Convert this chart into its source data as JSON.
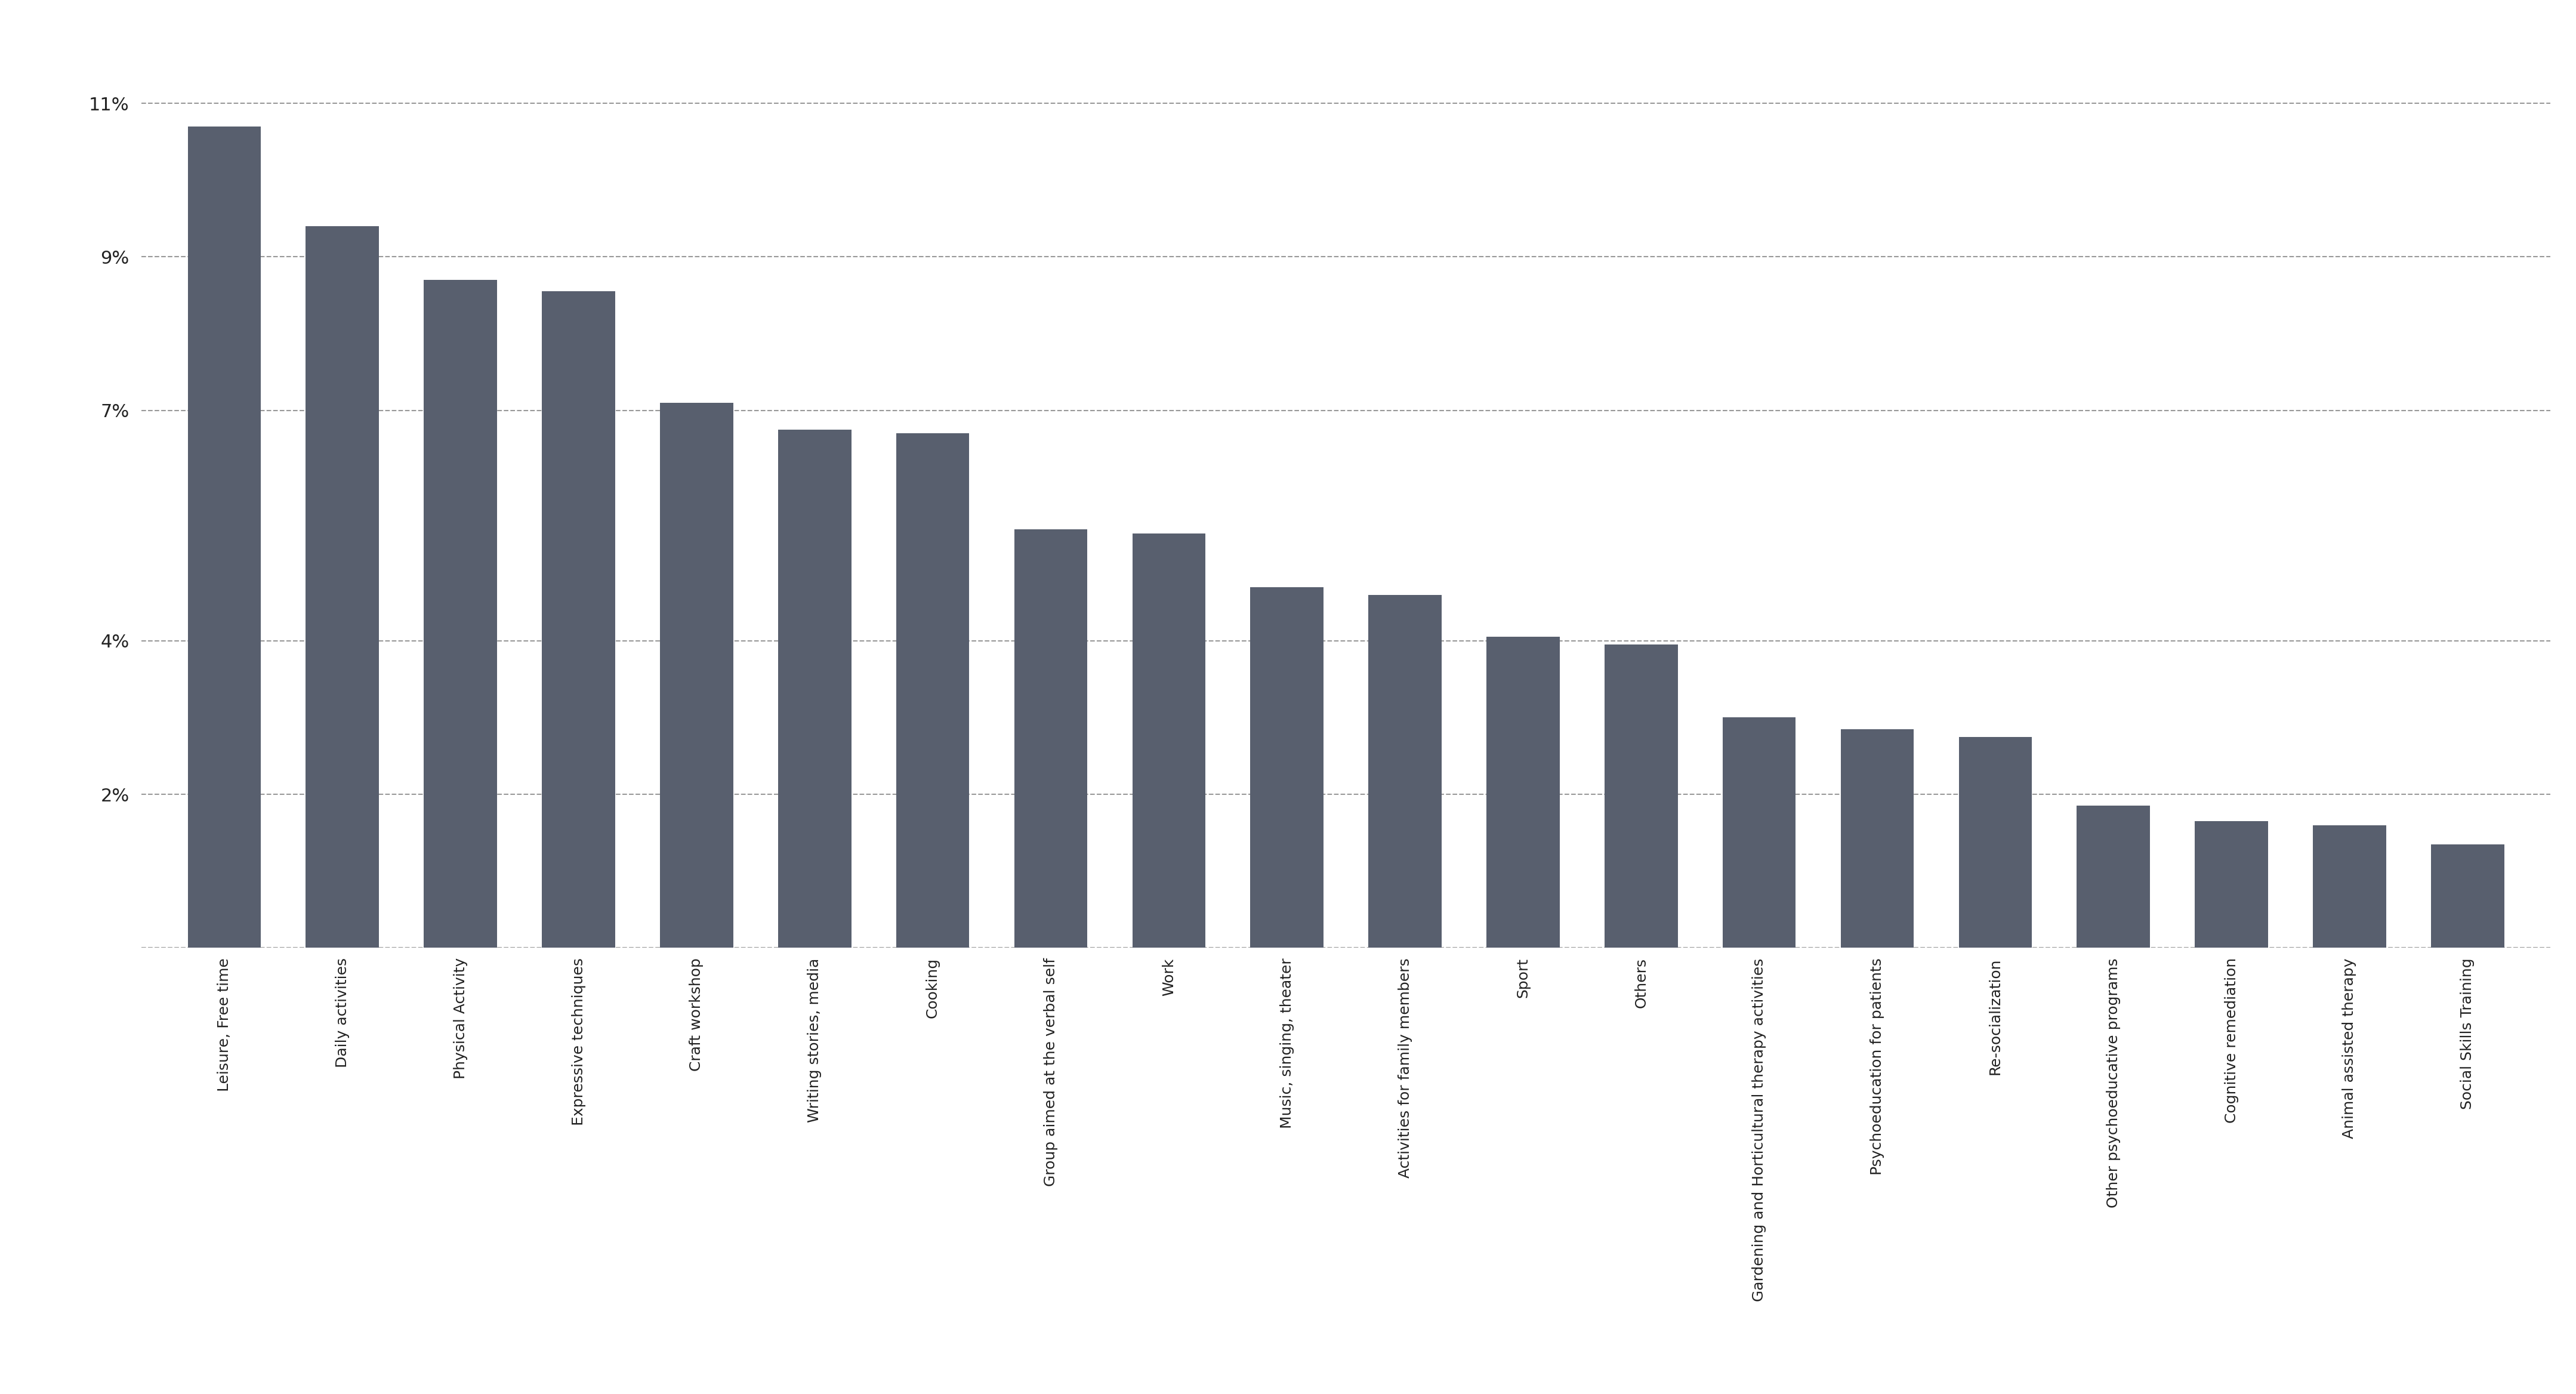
{
  "categories": [
    "Leisure, Free time",
    "Daily activities",
    "Physical Activity",
    "Expressive techniques",
    "Craft workshop",
    "Writing stories, media",
    "Cooking",
    "Group aimed at the verbal self",
    "Work",
    "Music, singing, theater",
    "Activities for family members",
    "Sport",
    "Others",
    "Gardening and Horticultural therapy activities",
    "Psychoeducation for patients",
    "Re-socialization",
    "Other psychoeducative programs",
    "Cognitive remediation",
    "Animal assisted therapy",
    "Social Skills Training"
  ],
  "values": [
    10.7,
    9.4,
    8.7,
    8.55,
    7.1,
    6.75,
    6.7,
    5.45,
    5.4,
    4.7,
    4.6,
    4.05,
    3.95,
    3.0,
    2.85,
    2.75,
    1.85,
    1.65,
    1.6,
    1.35
  ],
  "bar_color": "#585f6e",
  "background_color": "#ffffff",
  "ytick_labels": [
    "2%",
    "4%",
    "7%",
    "9%",
    "11%"
  ],
  "ytick_values": [
    2,
    4,
    7,
    9,
    11
  ],
  "grid_values": [
    0,
    2,
    4,
    7,
    9,
    11
  ],
  "ylim": [
    0,
    11.8
  ],
  "grid_color": "#999999",
  "xlabel_fontsize": 18,
  "ytick_fontsize": 22,
  "bar_width": 0.62
}
